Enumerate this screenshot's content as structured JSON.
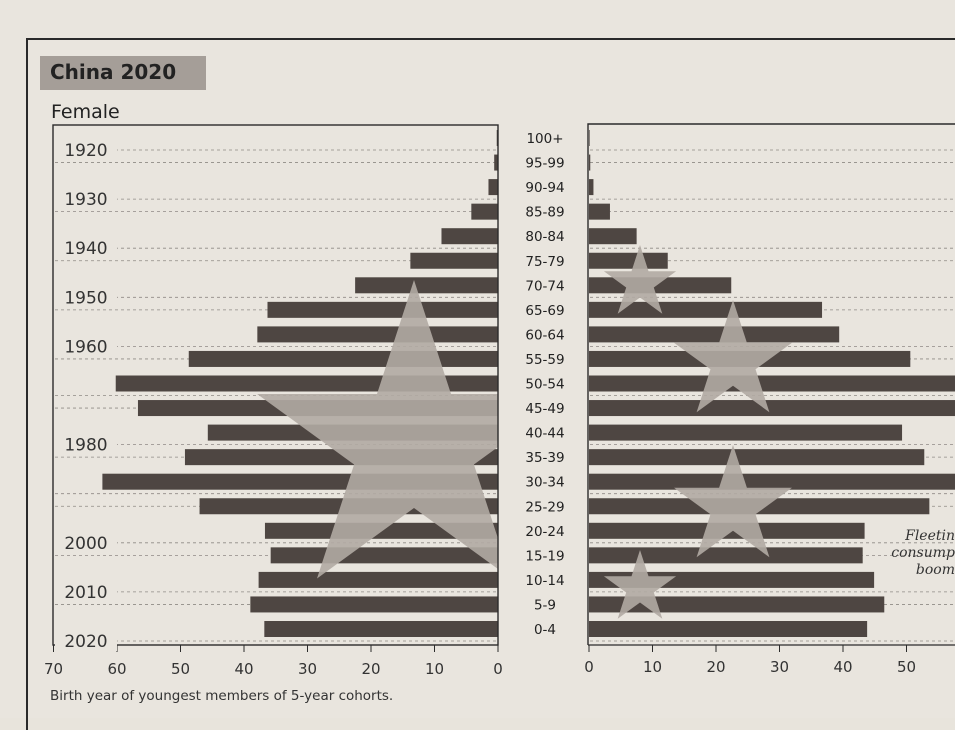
{
  "chart_data": {
    "type": "bar",
    "title": "China 2020",
    "left_panel_label": "Female",
    "age_groups": [
      "100+",
      "95-99",
      "90-94",
      "85-89",
      "80-84",
      "75-79",
      "70-74",
      "65-69",
      "60-64",
      "55-59",
      "50-54",
      "45-49",
      "40-44",
      "35-39",
      "30-34",
      "25-29",
      "20-24",
      "15-19",
      "10-14",
      "5-9",
      "0-4"
    ],
    "series": [
      {
        "name": "Female",
        "values": [
          0.2,
          0.6,
          1.5,
          4.2,
          8.9,
          13.8,
          22.5,
          36.3,
          37.9,
          48.7,
          60.2,
          56.7,
          45.7,
          49.3,
          62.3,
          47.0,
          36.7,
          35.8,
          37.7,
          39.0,
          36.8
        ]
      },
      {
        "name": "",
        "values": [
          0.1,
          0.2,
          0.7,
          3.3,
          7.5,
          12.4,
          22.4,
          36.7,
          39.4,
          50.6,
          60.0,
          60.0,
          49.3,
          52.8,
          60.0,
          53.6,
          43.4,
          43.1,
          44.9,
          46.5,
          43.8
        ]
      }
    ],
    "birth_year_labels": [
      {
        "label": "1920",
        "age_group": "100+"
      },
      {
        "label": "1930",
        "age_group": "90-94"
      },
      {
        "label": "1940",
        "age_group": "80-84"
      },
      {
        "label": "1950",
        "age_group": "70-74"
      },
      {
        "label": "1960",
        "age_group": "60-64"
      },
      {
        "label": "1980",
        "age_group": "40-44"
      },
      {
        "label": "2000",
        "age_group": "20-24"
      },
      {
        "label": "2010",
        "age_group": "10-14"
      },
      {
        "label": "2020",
        "age_group": "0-4"
      }
    ],
    "left_axis": {
      "ticks": [
        70,
        60,
        50,
        40,
        30,
        20,
        10,
        0
      ],
      "range": [
        70,
        0
      ]
    },
    "right_axis": {
      "ticks": [
        0,
        10,
        20,
        30,
        40,
        50
      ],
      "range": [
        0,
        58
      ]
    },
    "xlabel": "Birth year of youngest members of 5-year cohorts.",
    "annotation": [
      "Fleetin",
      "consump",
      "boom"
    ],
    "grid": "dashed horizontal",
    "colors": {
      "bar": "#4e4642",
      "star": "#b1aaa3",
      "background": "#e9e5de",
      "title_box": "#a59e98"
    }
  }
}
